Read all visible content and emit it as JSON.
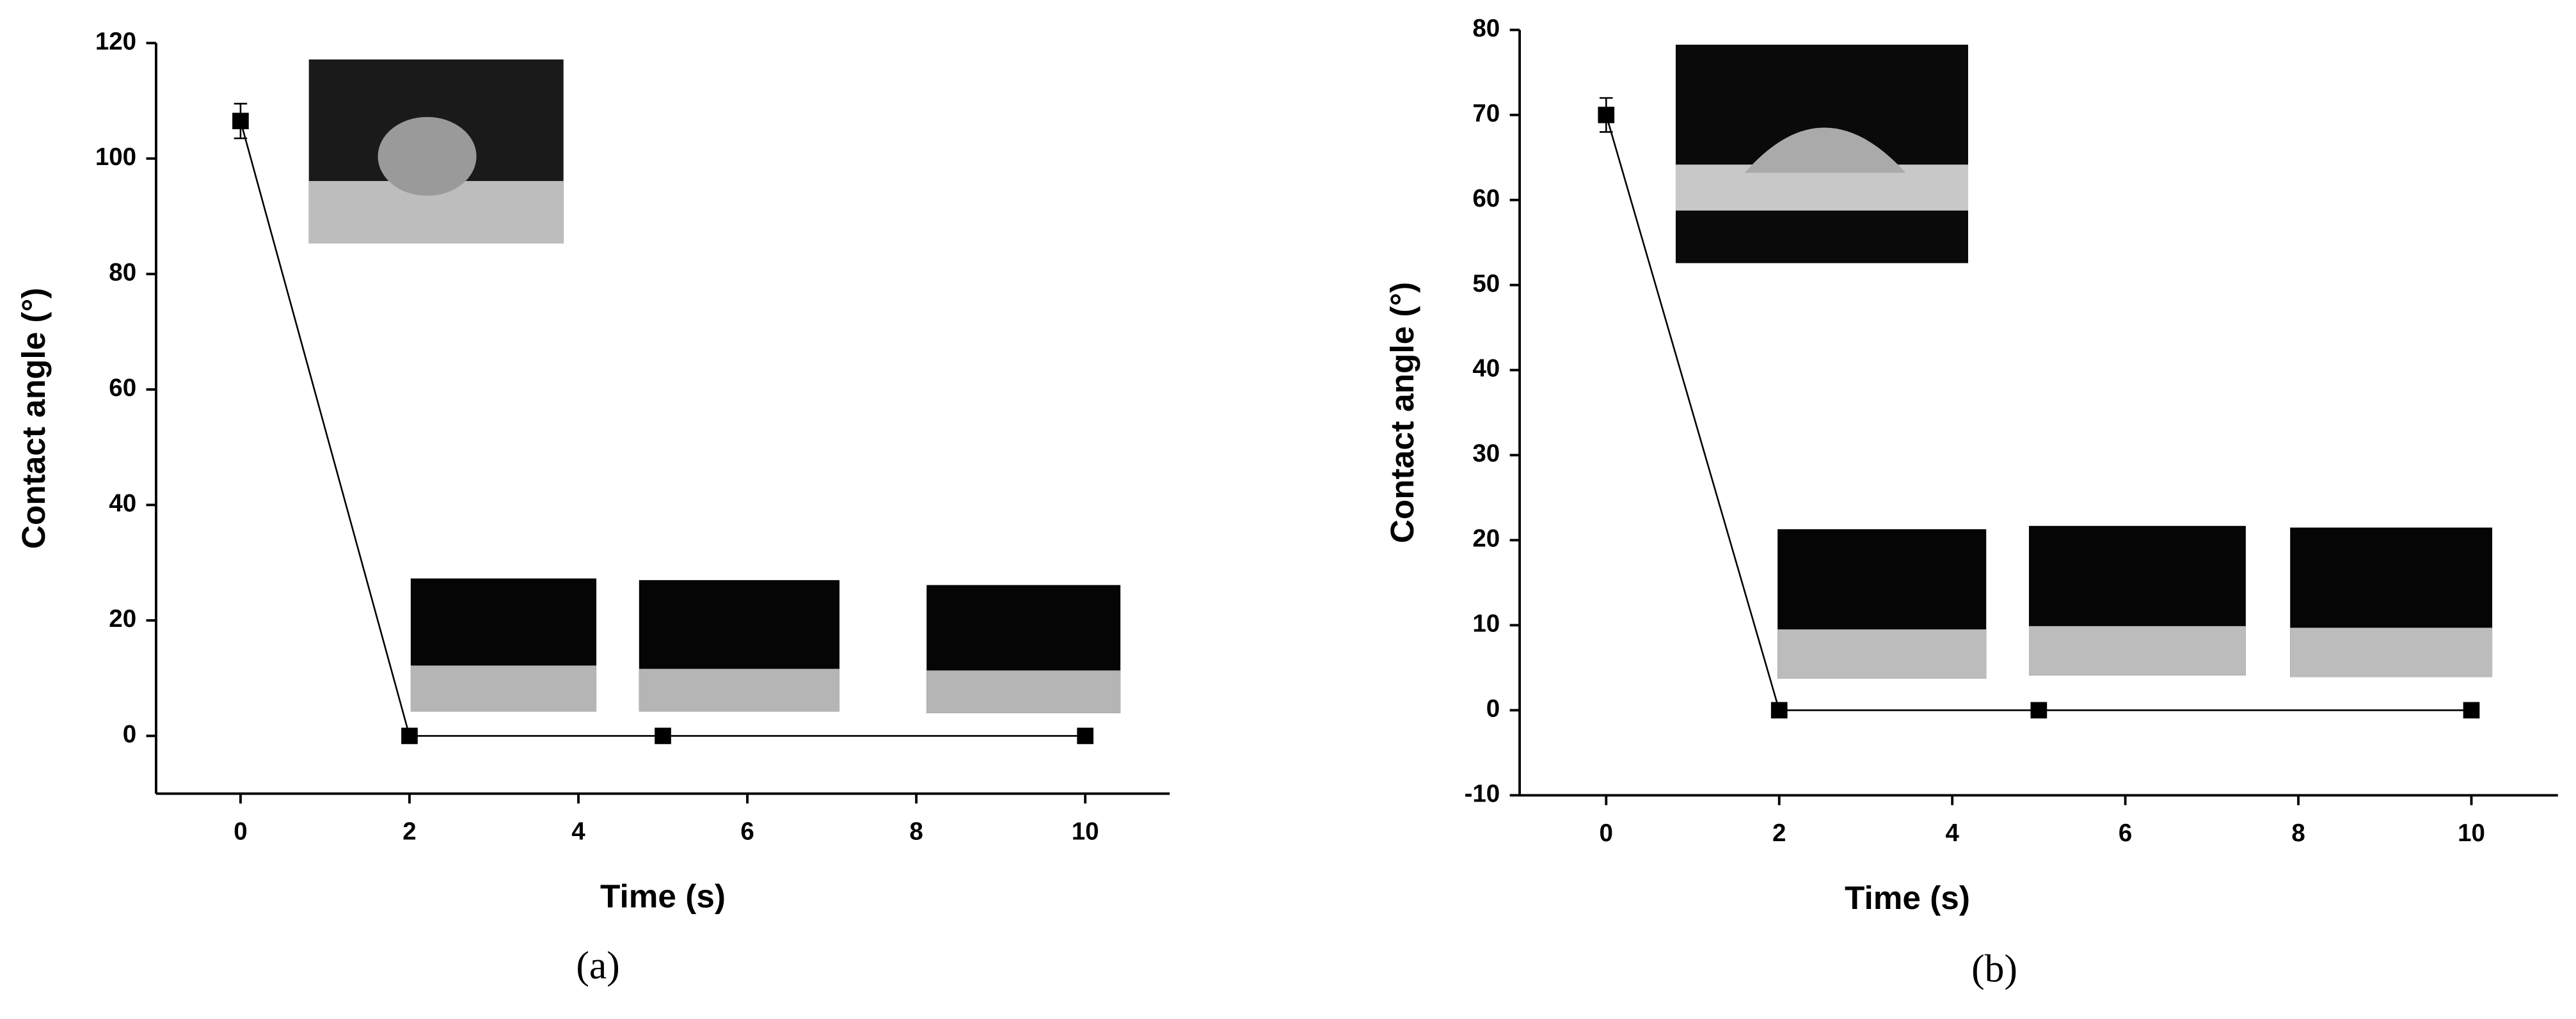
{
  "chart_data": [
    {
      "type": "line",
      "label": "(a)",
      "x_label": "Time (s)",
      "y_label": "Contact angle (°)",
      "x": [
        0,
        2,
        5,
        10
      ],
      "series": [
        {
          "color": "#000000",
          "values": [
            106.5,
            0,
            0,
            0
          ],
          "errors": [
            3,
            0,
            0,
            0
          ]
        }
      ],
      "xlim": [
        -1,
        11
      ],
      "xticks": [
        0,
        2,
        4,
        6,
        8,
        10
      ],
      "ylim": [
        -10,
        120
      ],
      "yticks": [
        0,
        20,
        40,
        60,
        80,
        100,
        120
      ]
    },
    {
      "type": "line",
      "label": "(b)",
      "x_label": "Time (s)",
      "y_label": "Contact angle (°)",
      "x": [
        0,
        2,
        5,
        10
      ],
      "series": [
        {
          "color": "#000000",
          "values": [
            70,
            0,
            0,
            0
          ],
          "errors": [
            2,
            0,
            0,
            0
          ]
        }
      ],
      "xlim": [
        -1,
        11
      ],
      "xticks": [
        0,
        2,
        4,
        6,
        8,
        10
      ],
      "ylim": [
        -10,
        80
      ],
      "yticks": [
        -10,
        0,
        10,
        20,
        30,
        40,
        50,
        60,
        70,
        80
      ]
    }
  ]
}
